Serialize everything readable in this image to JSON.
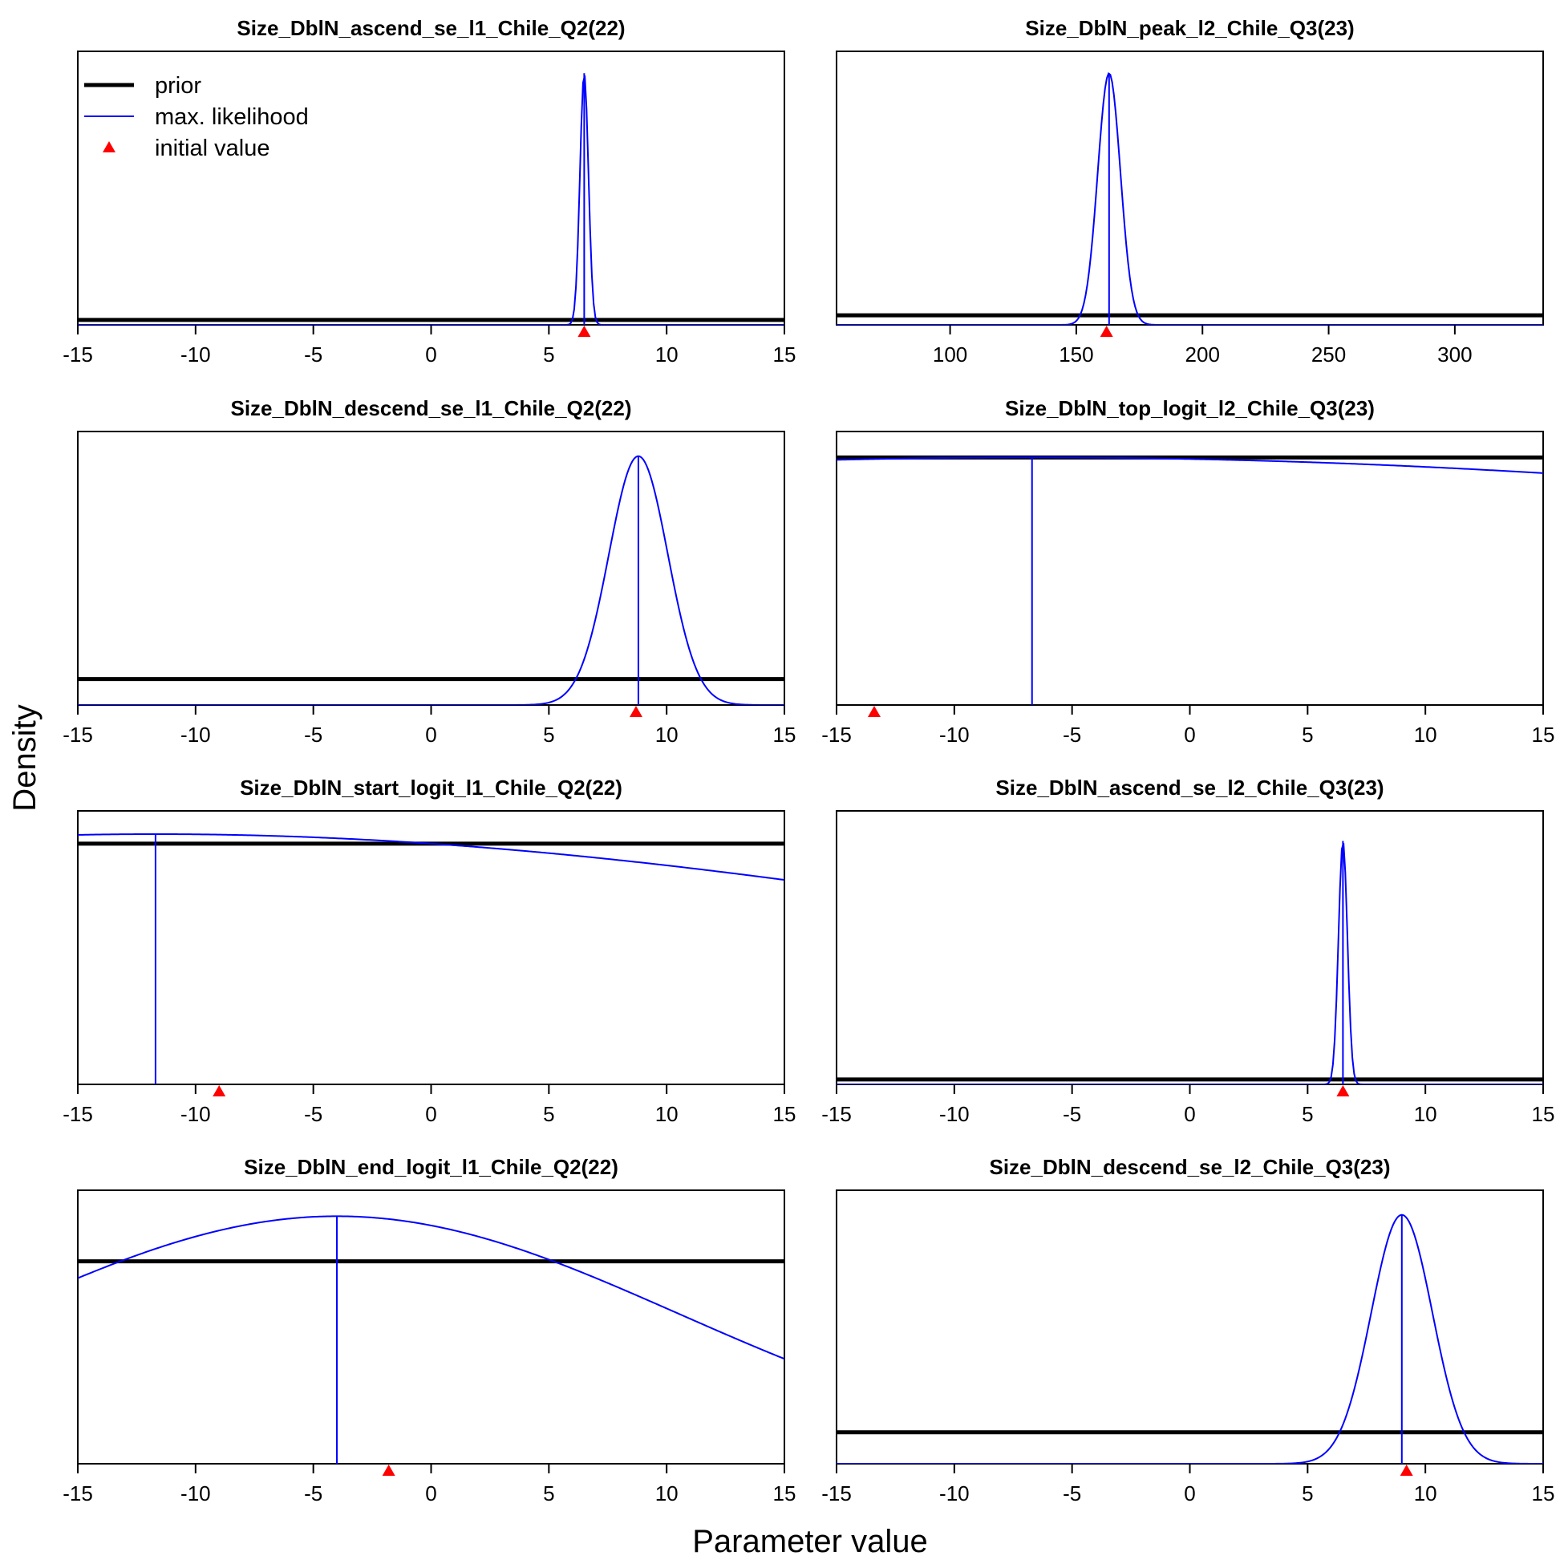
{
  "figure": {
    "xlabel": "Parameter value",
    "ylabel": "Density",
    "colors": {
      "prior": "#000000",
      "max_likelihood": "#0000ff",
      "initial_value": "#ff0000"
    }
  },
  "legend": {
    "placement": "top-left of first panel",
    "items": [
      {
        "label": "prior",
        "kind": "thick-line",
        "color": "#000000"
      },
      {
        "label": "max. likelihood",
        "kind": "thin-line",
        "color": "#0000ff"
      },
      {
        "label": "initial value",
        "kind": "triangle",
        "color": "#ff0000"
      }
    ]
  },
  "chart_data": [
    {
      "type": "line",
      "title": "Size_DblN_ascend_se_l1_Chile_Q2(22)",
      "xlim": [
        -15,
        15
      ],
      "xticks": [
        "-15",
        "-10",
        "-5",
        "0",
        "5",
        "10",
        "15"
      ],
      "prior_level": 0.018,
      "ml": {
        "kind": "normal",
        "mean": 6.5,
        "sd": 0.18,
        "peak": 0.92
      },
      "ml_value": 6.5,
      "initial_value": 6.5
    },
    {
      "type": "line",
      "title": "Size_DblN_peak_l2_Chile_Q3(23)",
      "xlim": [
        55,
        335
      ],
      "xticks": [
        "100",
        "150",
        "200",
        "250",
        "300"
      ],
      "prior_level": 0.035,
      "ml": {
        "kind": "normal",
        "mean": 163,
        "sd": 4.5,
        "peak": 0.92
      },
      "ml_value": 163,
      "initial_value": 162
    },
    {
      "type": "line",
      "title": "Size_DblN_descend_se_l1_Chile_Q2(22)",
      "xlim": [
        -15,
        15
      ],
      "xticks": [
        "-15",
        "-10",
        "-5",
        "0",
        "5",
        "10",
        "15"
      ],
      "prior_level": 0.095,
      "ml": {
        "kind": "normal",
        "mean": 8.8,
        "sd": 1.25,
        "peak": 0.91
      },
      "ml_value": 8.8,
      "initial_value": 8.7
    },
    {
      "type": "line",
      "title": "Size_DblN_top_logit_l2_Chile_Q3(23)",
      "xlim": [
        -15,
        15
      ],
      "xticks": [
        "-15",
        "-10",
        "-5",
        "0",
        "5",
        "10",
        "15"
      ],
      "prior_level": 0.905,
      "ml": {
        "kind": "normal",
        "mean": -6.7,
        "sd": 60,
        "peak": 0.905
      },
      "ml_value": -6.7,
      "initial_value": -13.4
    },
    {
      "type": "line",
      "title": "Size_DblN_start_logit_l1_Chile_Q2(22)",
      "xlim": [
        -15,
        15
      ],
      "xticks": [
        "-15",
        "-10",
        "-5",
        "0",
        "5",
        "10",
        "15"
      ],
      "prior_level": 0.88,
      "ml": {
        "kind": "normal",
        "mean": -11.7,
        "sd": 42,
        "peak": 0.915
      },
      "ml_value": -11.7,
      "initial_value": -9
    },
    {
      "type": "line",
      "title": "Size_DblN_ascend_se_l2_Chile_Q3(23)",
      "xlim": [
        -15,
        15
      ],
      "xticks": [
        "-15",
        "-10",
        "-5",
        "0",
        "5",
        "10",
        "15"
      ],
      "prior_level": 0.018,
      "ml": {
        "kind": "normal",
        "mean": 6.5,
        "sd": 0.19,
        "peak": 0.89
      },
      "ml_value": 6.5,
      "initial_value": 6.5
    },
    {
      "type": "line",
      "title": "Size_DblN_end_logit_l1_Chile_Q2(22)",
      "xlim": [
        -15,
        15
      ],
      "xticks": [
        "-15",
        "-10",
        "-5",
        "0",
        "5",
        "10",
        "15"
      ],
      "prior_level": 0.74,
      "ml": {
        "kind": "normal",
        "mean": -4,
        "sd": 14.5,
        "peak": 0.905
      },
      "ml_value": -4,
      "initial_value": -1.8
    },
    {
      "type": "line",
      "title": "Size_DblN_descend_se_l2_Chile_Q3(23)",
      "xlim": [
        -15,
        15
      ],
      "xticks": [
        "-15",
        "-10",
        "-5",
        "0",
        "5",
        "10",
        "15"
      ],
      "prior_level": 0.115,
      "ml": {
        "kind": "normal",
        "mean": 9,
        "sd": 1.3,
        "peak": 0.91
      },
      "ml_value": 9,
      "initial_value": 9.2
    }
  ]
}
